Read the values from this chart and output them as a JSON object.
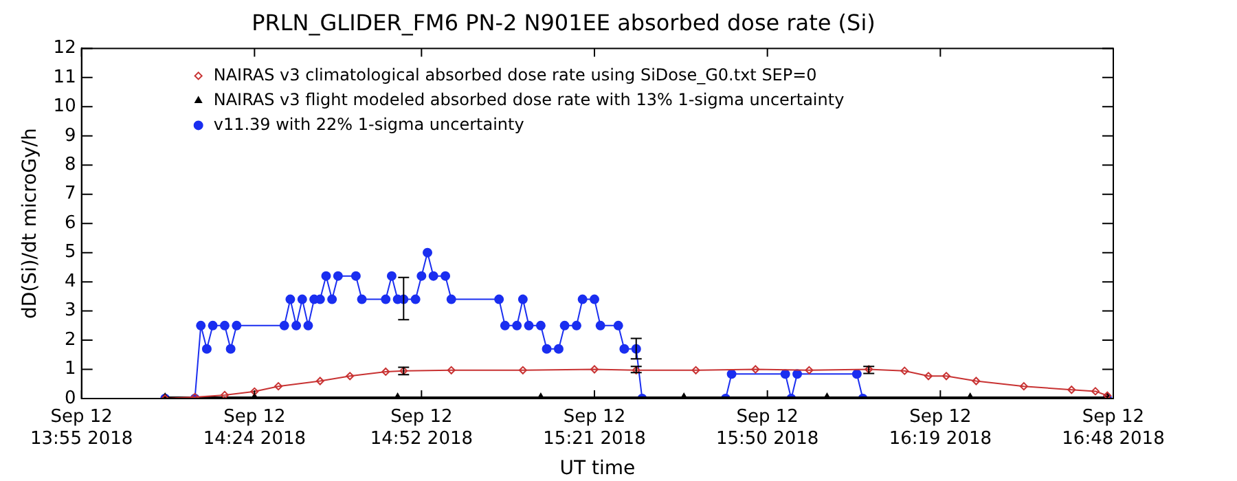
{
  "chart_data": {
    "type": "line",
    "title": "PRLN_GLIDER_FM6 PN-2 N901EE absorbed dose rate (Si)",
    "xlabel": "UT time",
    "ylabel": "dD(Si)/dt microGy/h",
    "xlim": [
      "2018-09-12T13:55",
      "2018-09-12T16:48"
    ],
    "xticks": [
      {
        "value": "2018-09-12T13:55",
        "label": "Sep 12\n13:55 2018"
      },
      {
        "value": "2018-09-12T14:24",
        "label": "Sep 12\n14:24 2018"
      },
      {
        "value": "2018-09-12T14:52",
        "label": "Sep 12\n14:52 2018"
      },
      {
        "value": "2018-09-12T15:21",
        "label": "Sep 12\n15:21 2018"
      },
      {
        "value": "2018-09-12T15:50",
        "label": "Sep 12\n15:50 2018"
      },
      {
        "value": "2018-09-12T16:19",
        "label": "Sep 12\n16:19 2018"
      },
      {
        "value": "2018-09-12T16:48",
        "label": "Sep 12\n16:48 2018"
      }
    ],
    "ylim": [
      0,
      12
    ],
    "yticks": [
      0,
      1,
      2,
      3,
      4,
      5,
      6,
      7,
      8,
      9,
      10,
      11,
      12
    ],
    "grid": false,
    "legend": "top left",
    "series": [
      {
        "name": "NAIRAS v3 climatological absorbed dose rate using SiDose_G0.txt SEP=0",
        "color": "#c83232",
        "marker": "diamond",
        "x": [
          "2018-09-12T14:09",
          "2018-09-12T14:14",
          "2018-09-12T14:19",
          "2018-09-12T14:24",
          "2018-09-12T14:28",
          "2018-09-12T14:35",
          "2018-09-12T14:40",
          "2018-09-12T14:46",
          "2018-09-12T14:49",
          "2018-09-12T14:57",
          "2018-09-12T15:09",
          "2018-09-12T15:21",
          "2018-09-12T15:28",
          "2018-09-12T15:38",
          "2018-09-12T15:48",
          "2018-09-12T15:57",
          "2018-09-12T16:07",
          "2018-09-12T16:13",
          "2018-09-12T16:17",
          "2018-09-12T16:20",
          "2018-09-12T16:25",
          "2018-09-12T16:33",
          "2018-09-12T16:41",
          "2018-09-12T16:45",
          "2018-09-12T16:47"
        ],
        "values": [
          0,
          0.05,
          0.12,
          0.24,
          0.42,
          0.6,
          0.77,
          0.92,
          0.95,
          0.97,
          0.97,
          1,
          0.97,
          0.97,
          1,
          0.97,
          1,
          0.95,
          0.77,
          0.77,
          0.6,
          0.42,
          0.3,
          0.25,
          0.1
        ],
        "errors": [
          null,
          null,
          null,
          null,
          null,
          null,
          null,
          null,
          [
            0.82,
            1.07
          ],
          null,
          null,
          null,
          [
            0.89,
            1.1
          ],
          null,
          null,
          null,
          [
            0.86,
            1.1
          ],
          null,
          null,
          null,
          null,
          null,
          null,
          null,
          null
        ]
      },
      {
        "name": "NAIRAS v3 flight modeled absorbed dose rate with 13% 1-sigma uncertainty",
        "color": "#000000",
        "marker": "triangle",
        "x": [
          "2018-09-12T14:09",
          "2018-09-12T14:24",
          "2018-09-12T14:48",
          "2018-09-12T15:12",
          "2018-09-12T15:36",
          "2018-09-12T16:00",
          "2018-09-12T16:24",
          "2018-09-12T16:47"
        ],
        "values": [
          0.05,
          0.05,
          0.05,
          0.05,
          0.05,
          0.05,
          0.05,
          0.05
        ]
      },
      {
        "name": "v11.39 with 22% 1-sigma uncertainty",
        "color": "#1a2ef0",
        "marker": "circle",
        "x": [
          "2018-09-12T14:09",
          "2018-09-12T14:14",
          "2018-09-12T14:15",
          "2018-09-12T14:16",
          "2018-09-12T14:17",
          "2018-09-12T14:19",
          "2018-09-12T14:20",
          "2018-09-12T14:21",
          "2018-09-12T14:29",
          "2018-09-12T14:30",
          "2018-09-12T14:31",
          "2018-09-12T14:32",
          "2018-09-12T14:33",
          "2018-09-12T14:34",
          "2018-09-12T14:35",
          "2018-09-12T14:36",
          "2018-09-12T14:37",
          "2018-09-12T14:38",
          "2018-09-12T14:41",
          "2018-09-12T14:42",
          "2018-09-12T14:46",
          "2018-09-12T14:47",
          "2018-09-12T14:48",
          "2018-09-12T14:49",
          "2018-09-12T14:51",
          "2018-09-12T14:52",
          "2018-09-12T14:53",
          "2018-09-12T14:54",
          "2018-09-12T14:56",
          "2018-09-12T14:57",
          "2018-09-12T15:05",
          "2018-09-12T15:06",
          "2018-09-12T15:08",
          "2018-09-12T15:09",
          "2018-09-12T15:10",
          "2018-09-12T15:12",
          "2018-09-12T15:13",
          "2018-09-12T15:15",
          "2018-09-12T15:16",
          "2018-09-12T15:18",
          "2018-09-12T15:19",
          "2018-09-12T15:21",
          "2018-09-12T15:22",
          "2018-09-12T15:25",
          "2018-09-12T15:26",
          "2018-09-12T15:28",
          "2018-09-12T15:29",
          "2018-09-12T15:43",
          "2018-09-12T15:44",
          "2018-09-12T15:53",
          "2018-09-12T15:54",
          "2018-09-12T15:55",
          "2018-09-12T16:05",
          "2018-09-12T16:06",
          "2018-09-12T16:47"
        ],
        "values": [
          0,
          0,
          2.5,
          1.7,
          2.5,
          2.5,
          1.7,
          2.5,
          2.5,
          3.4,
          2.5,
          3.4,
          2.5,
          3.4,
          3.4,
          4.2,
          3.4,
          4.2,
          4.2,
          3.4,
          3.4,
          4.2,
          3.4,
          3.4,
          3.4,
          4.2,
          5,
          4.2,
          4.2,
          3.4,
          3.4,
          2.5,
          2.5,
          3.4,
          2.5,
          2.5,
          1.7,
          1.7,
          2.5,
          2.5,
          3.4,
          3.4,
          2.5,
          2.5,
          1.7,
          1.7,
          0,
          0,
          0.84,
          0.84,
          0,
          0.84,
          0.84,
          0,
          0
        ],
        "errors": [
          null,
          null,
          null,
          null,
          null,
          null,
          null,
          null,
          null,
          null,
          null,
          null,
          null,
          null,
          null,
          null,
          null,
          null,
          null,
          null,
          null,
          null,
          null,
          [
            2.7,
            4.15
          ],
          null,
          null,
          null,
          null,
          null,
          null,
          null,
          null,
          null,
          null,
          null,
          null,
          null,
          null,
          null,
          null,
          null,
          null,
          null,
          null,
          null,
          [
            1.36,
            2.06
          ],
          null,
          null,
          null,
          null,
          null,
          null,
          null,
          null,
          null
        ]
      }
    ]
  }
}
